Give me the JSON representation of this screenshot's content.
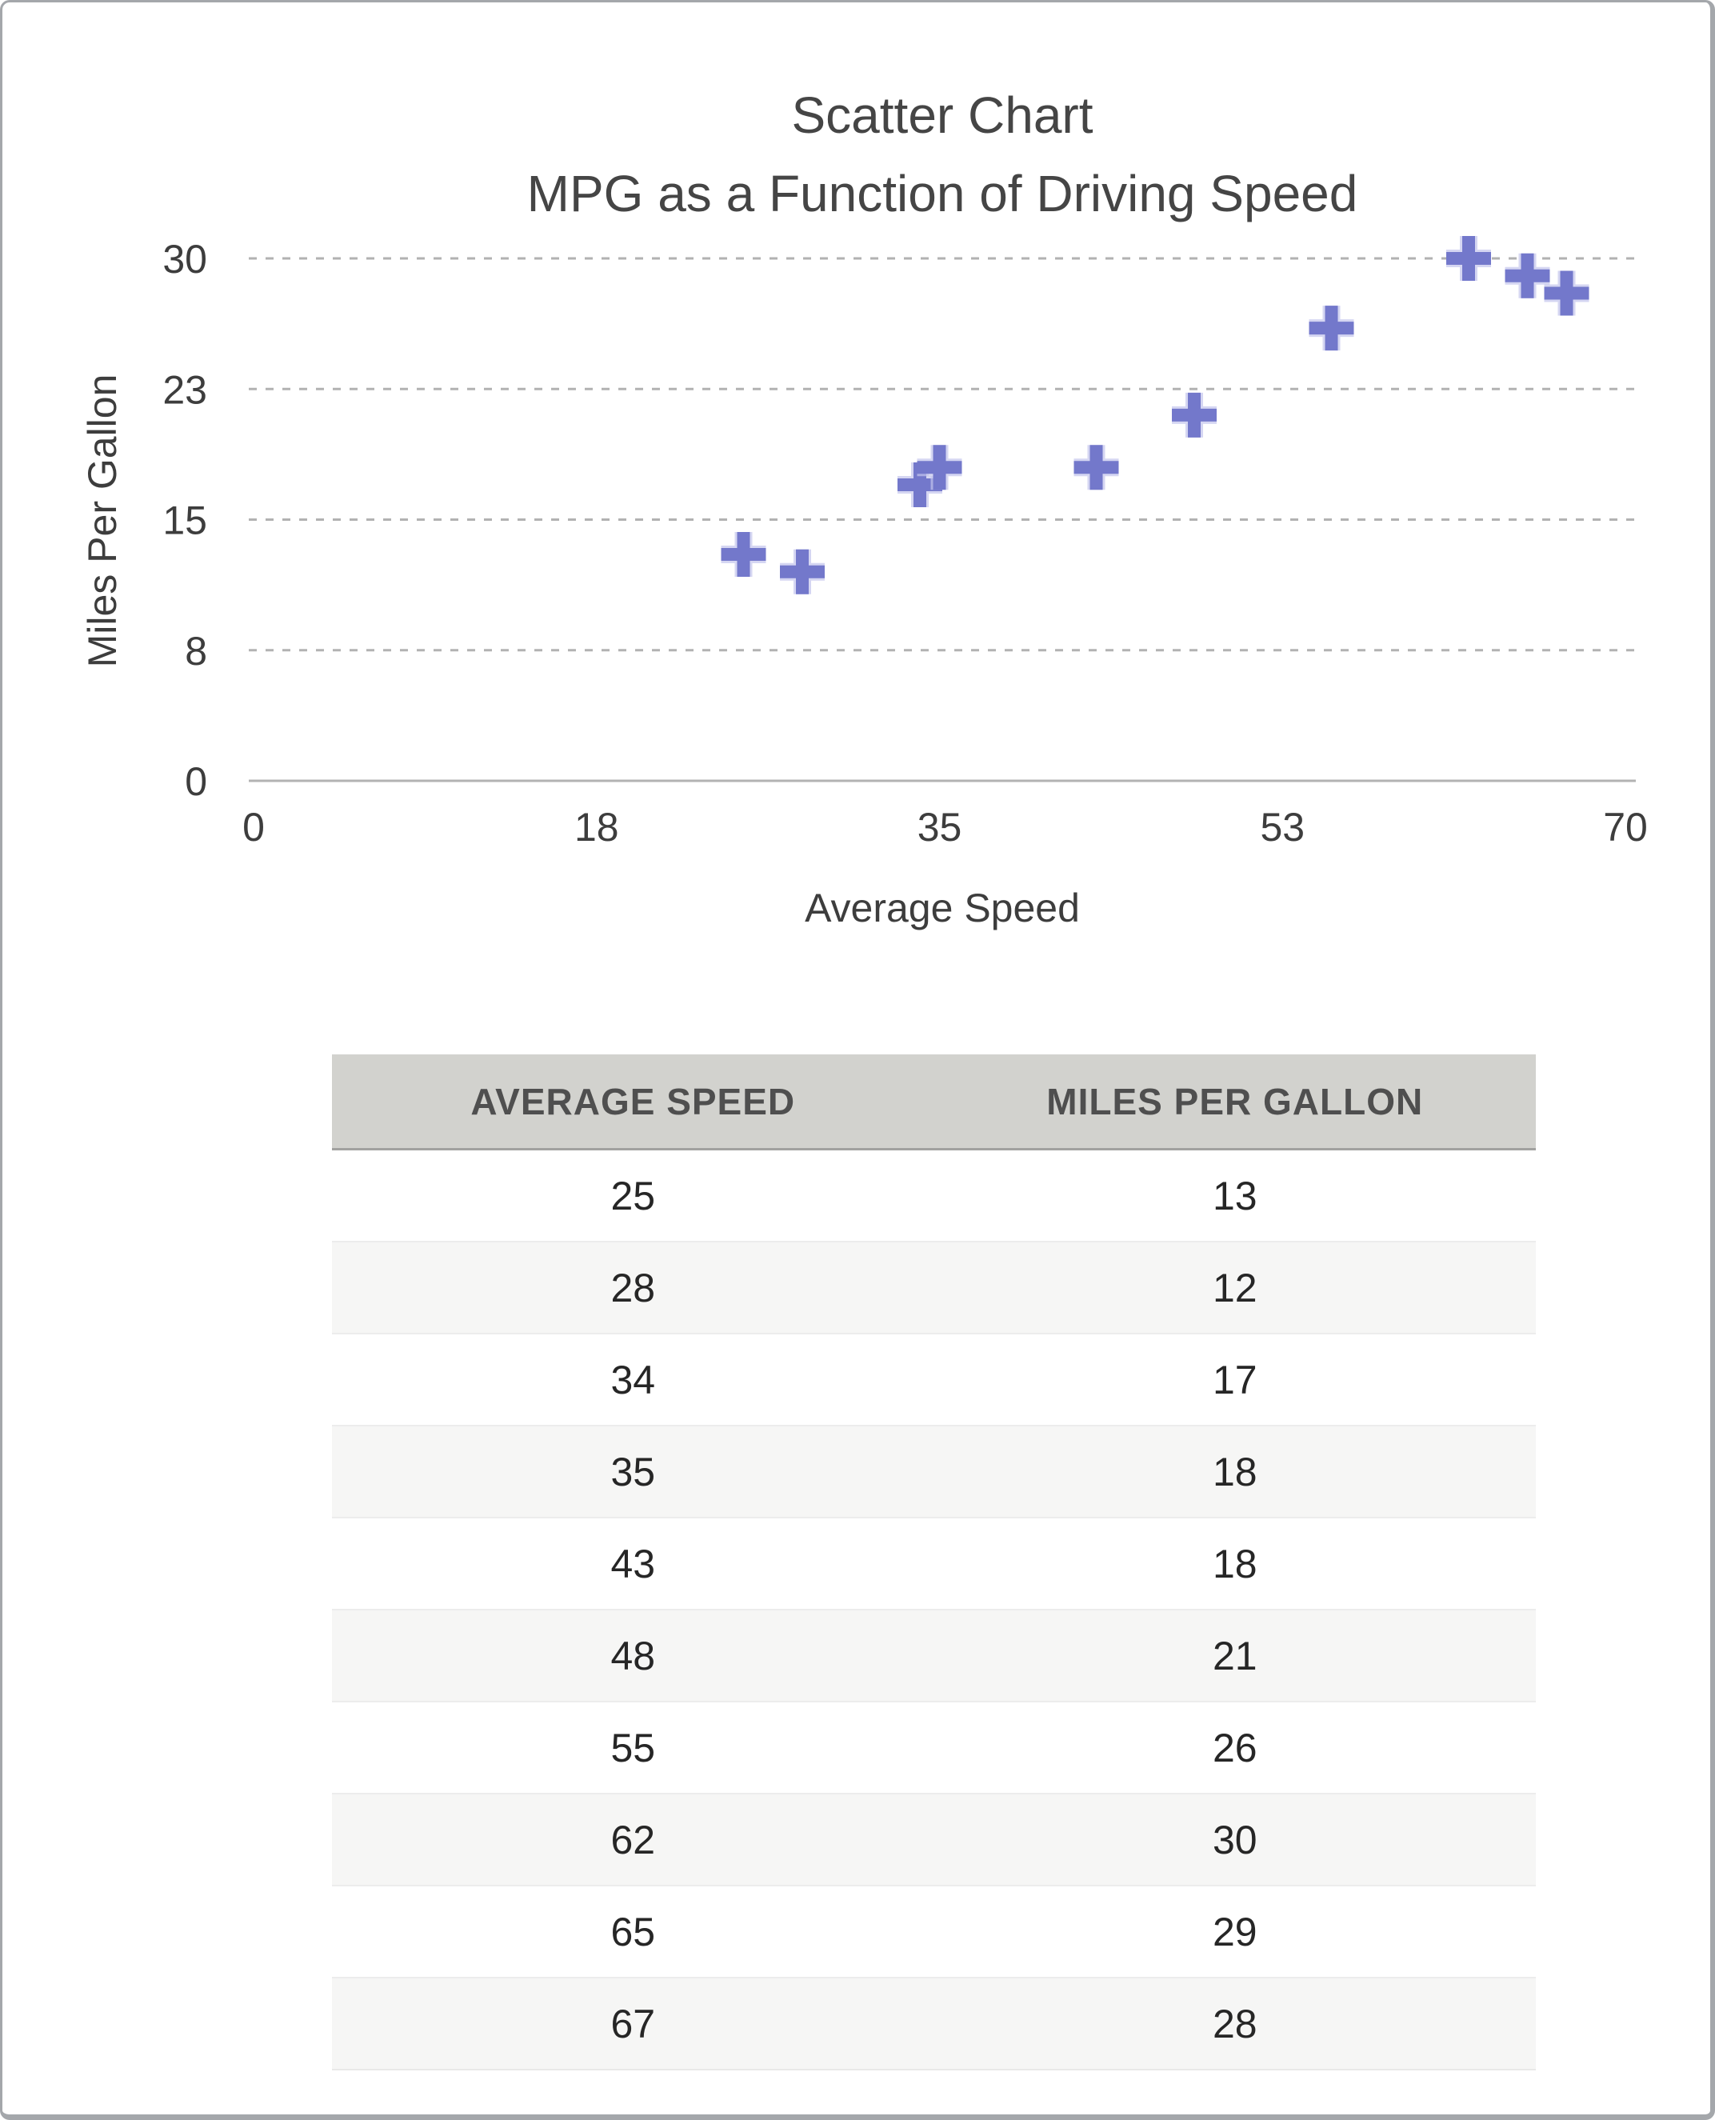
{
  "page": {
    "background": "#ffffff",
    "border_color": "#a4a7ab"
  },
  "chart_data": {
    "type": "scatter",
    "title": "Scatter Chart",
    "subtitle": "MPG as a Function of Driving Speed",
    "xlabel": "Average Speed",
    "ylabel": "Miles Per Gallon",
    "xlim": [
      0,
      70
    ],
    "ylim": [
      0,
      30
    ],
    "x_ticks": [
      {
        "value": 0,
        "label": "0"
      },
      {
        "value": 17.5,
        "label": "18"
      },
      {
        "value": 35,
        "label": "35"
      },
      {
        "value": 52.5,
        "label": "53"
      },
      {
        "value": 70,
        "label": "70"
      }
    ],
    "y_ticks": [
      {
        "value": 0,
        "label": "0"
      },
      {
        "value": 7.5,
        "label": "8"
      },
      {
        "value": 15,
        "label": "15"
      },
      {
        "value": 22.5,
        "label": "23"
      },
      {
        "value": 30,
        "label": "30"
      }
    ],
    "grid": "horizontal-dashed",
    "legend": "none",
    "colors": {
      "marker": "#7378cb",
      "marker_halo": "#c3c5ec",
      "gridline": "#a0a0a0",
      "axis_line": "#b3b3b3",
      "tick_text": "#3d3d3d",
      "title_text": "#454545"
    },
    "marker_style": {
      "shape": "plus",
      "size": 56,
      "stroke_width": 16
    },
    "points": [
      {
        "x": 25,
        "y": 13
      },
      {
        "x": 28,
        "y": 12
      },
      {
        "x": 34,
        "y": 17
      },
      {
        "x": 35,
        "y": 18
      },
      {
        "x": 43,
        "y": 18
      },
      {
        "x": 48,
        "y": 21
      },
      {
        "x": 55,
        "y": 26
      },
      {
        "x": 62,
        "y": 30
      },
      {
        "x": 65,
        "y": 29
      },
      {
        "x": 67,
        "y": 28
      }
    ]
  },
  "table": {
    "columns": [
      "AVERAGE SPEED",
      "MILES PER GALLON"
    ],
    "rows": [
      [
        "25",
        "13"
      ],
      [
        "28",
        "12"
      ],
      [
        "34",
        "17"
      ],
      [
        "35",
        "18"
      ],
      [
        "43",
        "18"
      ],
      [
        "48",
        "21"
      ],
      [
        "55",
        "26"
      ],
      [
        "62",
        "30"
      ],
      [
        "65",
        "29"
      ],
      [
        "67",
        "28"
      ]
    ],
    "header_bg": "#d2d2ce",
    "alt_row_bg": "#f6f6f5"
  }
}
